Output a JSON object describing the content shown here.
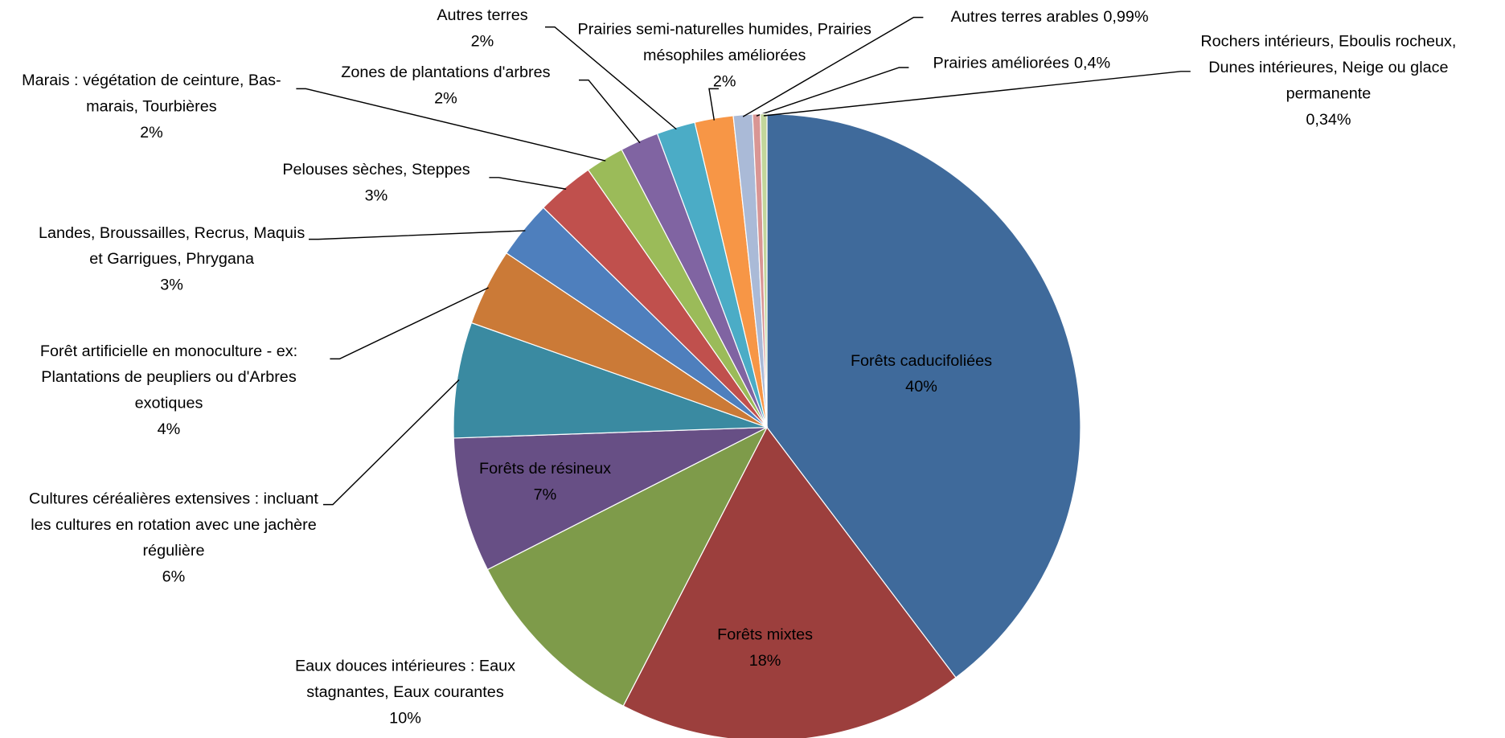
{
  "chart_data": {
    "type": "pie",
    "categories": [
      "Forêts caducifoliées",
      "Forêts mixtes",
      "Eaux douces intérieures : Eaux stagnantes, Eaux courantes",
      "Forêts de résineux",
      "Cultures céréalières extensives : incluant les cultures en rotation avec une jachère régulière",
      "Forêt artificielle en monoculture - ex: Plantations de peupliers ou d'Arbres exotiques",
      "Landes, Broussailles, Recrus, Maquis et Garrigues, Phrygana",
      "Pelouses sèches, Steppes",
      "Marais : végétation de ceinture, Bas-marais, Tourbières",
      "Zones de plantations d'arbres",
      "Autres terres",
      "Prairies semi-naturelles humides, Prairies mésophiles améliorées",
      "Autres terres arables",
      "Prairies améliorées",
      "Rochers intérieurs, Eboulis rocheux, Dunes intérieures, Neige ou glace permanente"
    ],
    "values": [
      40,
      18,
      10,
      7,
      6,
      4,
      3,
      3,
      2,
      2,
      2,
      2,
      0.99,
      0.4,
      0.34
    ],
    "value_labels": [
      "40%",
      "18%",
      "10%",
      "7%",
      "6%",
      "4%",
      "3%",
      "3%",
      "2%",
      "2%",
      "2%",
      "2%",
      "0,99%",
      "0,4%",
      "0,34%"
    ],
    "colors": [
      "#3f6a9b",
      "#9c3f3d",
      "#7e9b4a",
      "#674f85",
      "#3a8aa1",
      "#cb7a37",
      "#4e7fbd",
      "#c0504d",
      "#9bbb59",
      "#8064a2",
      "#4bacc6",
      "#f79646",
      "#aabad7",
      "#d99694",
      "#c3d69b"
    ]
  }
}
